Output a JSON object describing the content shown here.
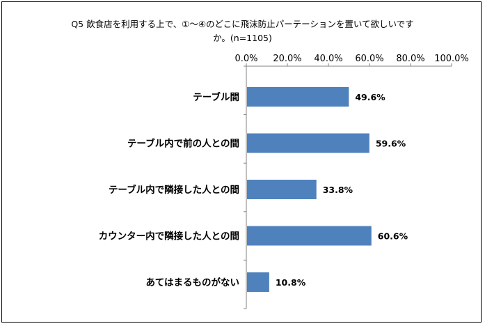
{
  "title_line1": "Q5 飲食店を利用する上で、①～④のどこに飛沫防止パーテーションを置いて欲しいです",
  "title_line2": "か。(n=1105)",
  "chart_data": {
    "type": "bar",
    "orientation": "horizontal",
    "title": "Q5 飲食店を利用する上で、①～④のどこに飛沫防止パーテーションを置いて欲しいですか。(n=1105)",
    "categories": [
      "テーブル間",
      "テーブル内で前の人との間",
      "テーブル内で隣接した人との間",
      "カウンター内で隣接した人との間",
      "あてはまるものがない"
    ],
    "values": [
      49.6,
      59.6,
      33.8,
      60.6,
      10.8
    ],
    "value_labels": [
      "49.6%",
      "59.6%",
      "33.8%",
      "60.6%",
      "10.8%"
    ],
    "xlim": [
      0,
      100
    ],
    "x_ticks": [
      "0.0%",
      "20.0%",
      "40.0%",
      "60.0%",
      "80.0%",
      "100.0%"
    ],
    "x_axis_position": "top",
    "grid": false,
    "legend": "none",
    "bar_color": "#4F81BD"
  }
}
